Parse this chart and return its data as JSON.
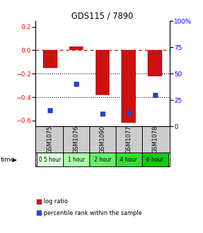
{
  "title": "GDS115 / 7890",
  "samples": [
    "GSM1075",
    "GSM1076",
    "GSM1090",
    "GSM1077",
    "GSM1078"
  ],
  "time_labels": [
    "0.5 hour",
    "1 hour",
    "2 hour",
    "4 hour",
    "6 hour"
  ],
  "log_ratios": [
    -0.15,
    0.03,
    -0.38,
    -0.62,
    -0.22
  ],
  "percentiles": [
    15,
    40,
    12,
    13,
    30
  ],
  "bar_color": "#cc1111",
  "dot_color": "#2244cc",
  "ylim_left": [
    -0.65,
    0.25
  ],
  "ylim_right": [
    0,
    100
  ],
  "yticks_left": [
    0.2,
    0.0,
    -0.2,
    -0.4,
    -0.6
  ],
  "yticks_right": [
    100,
    75,
    50,
    25,
    0
  ],
  "hline_y": 0.0,
  "dotted_lines": [
    -0.2,
    -0.4
  ],
  "bar_width": 0.55,
  "background_color": "#ffffff",
  "time_colors": [
    "#ddffdd",
    "#aaffaa",
    "#66ee66",
    "#33dd33",
    "#11cc11"
  ],
  "sample_bg": "#cccccc",
  "legend_bar_label": "log ratio",
  "legend_dot_label": "percentile rank within the sample"
}
